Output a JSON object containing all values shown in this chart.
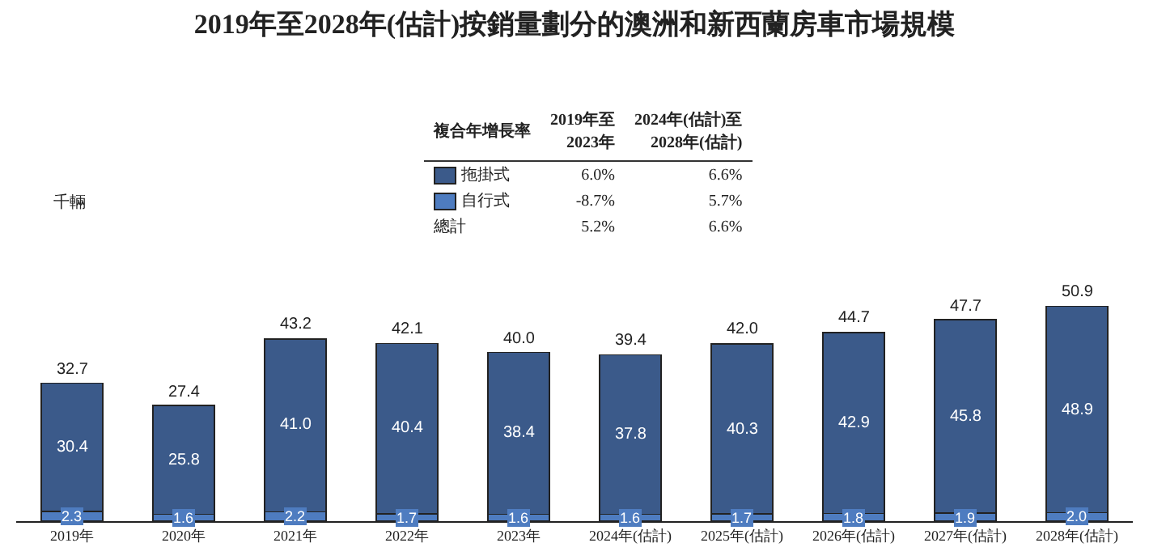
{
  "chart_data": {
    "type": "bar",
    "stacked": true,
    "title": "2019年至2028年(估計)按銷量劃分的澳洲和新西蘭房車市場規模",
    "categories": [
      "2019年",
      "2020年",
      "2021年",
      "2022年",
      "2023年",
      "2024年(估計)",
      "2025年(估計)",
      "2026年(估計)",
      "2027年(估計)",
      "2028年(估計)"
    ],
    "series": [
      {
        "name": "自行式",
        "color": "#4e7cc0",
        "values": [
          2.3,
          1.6,
          2.2,
          1.7,
          1.6,
          1.6,
          1.7,
          1.8,
          1.9,
          2.0
        ],
        "value_labels": [
          "2.3",
          "1.6",
          "2.2",
          "1.7",
          "1.6",
          "1.6",
          "1.7",
          "1.8",
          "1.9",
          "2.0"
        ]
      },
      {
        "name": "拖掛式",
        "color": "#3b5a8a",
        "values": [
          30.4,
          25.8,
          41.0,
          40.4,
          38.4,
          37.8,
          40.3,
          42.9,
          45.8,
          48.9
        ],
        "value_labels": [
          "30.4",
          "25.8",
          "41.0",
          "40.4",
          "38.4",
          "37.8",
          "40.3",
          "42.9",
          "45.8",
          "48.9"
        ]
      }
    ],
    "totals": [
      "32.7",
      "27.4",
      "43.2",
      "42.1",
      "40.0",
      "39.4",
      "42.0",
      "44.7",
      "47.7",
      "50.9"
    ],
    "legend": "top",
    "annotations": [
      "千輛",
      "複合年增長率",
      "2019年至\n2023年",
      "2024年(估計)至\n2028年(估計)",
      "6.0%",
      "6.6%",
      "-8.7%",
      "5.7%",
      "總計",
      "5.2%",
      "6.6%"
    ]
  }
}
